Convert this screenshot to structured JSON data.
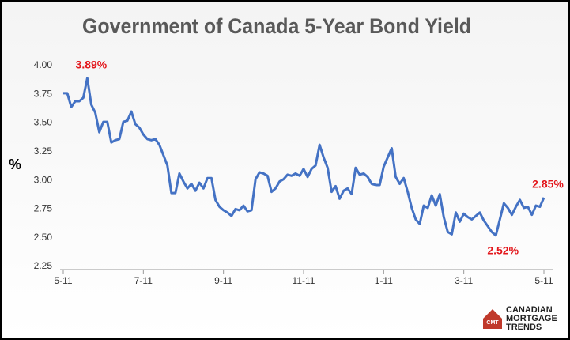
{
  "chart_data": {
    "type": "line",
    "title": "Government of Canada 5-Year Bond Yield",
    "y_label": "%",
    "x": [
      0,
      0.1,
      0.2,
      0.3,
      0.4,
      0.5,
      0.6,
      0.7,
      0.8,
      0.9,
      1,
      1.1,
      1.2,
      1.3,
      1.4,
      1.5,
      1.6,
      1.7,
      1.8,
      1.9,
      2,
      2.1,
      2.2,
      2.3,
      2.4,
      2.5,
      2.6,
      2.7,
      2.8,
      2.9,
      3,
      3.1,
      3.2,
      3.3,
      3.4,
      3.5,
      3.6,
      3.7,
      3.8,
      3.9,
      4,
      4.1,
      4.2,
      4.3,
      4.4,
      4.5,
      4.6,
      4.7,
      4.8,
      4.9,
      5,
      5.1,
      5.2,
      5.3,
      5.4,
      5.5,
      5.6,
      5.7,
      5.8,
      5.9,
      6,
      6.1,
      6.2,
      6.3,
      6.4,
      6.5,
      6.6,
      6.7,
      6.8,
      6.9,
      7,
      7.1,
      7.2,
      7.3,
      7.4,
      7.5,
      7.6,
      7.7,
      7.8,
      7.9,
      8,
      8.1,
      8.2,
      8.3,
      8.4,
      8.5,
      8.6,
      8.7,
      8.8,
      8.9,
      9,
      9.1,
      9.2,
      9.3,
      9.4,
      9.5,
      9.6,
      9.7,
      9.8,
      9.9,
      10,
      10.1,
      10.2,
      10.3,
      10.4,
      10.5,
      10.6,
      10.7,
      10.8,
      10.9,
      11,
      11.1,
      11.2,
      11.3,
      11.4,
      11.5,
      11.6,
      11.7,
      11.8,
      11.9,
      12
    ],
    "series": [
      {
        "color": "#4472c4",
        "values": [
          3.76,
          3.76,
          3.64,
          3.69,
          3.69,
          3.72,
          3.89,
          3.66,
          3.59,
          3.42,
          3.51,
          3.51,
          3.33,
          3.35,
          3.36,
          3.51,
          3.52,
          3.6,
          3.49,
          3.46,
          3.4,
          3.36,
          3.35,
          3.36,
          3.31,
          3.22,
          3.13,
          2.89,
          2.89,
          3.06,
          2.99,
          2.93,
          2.97,
          2.91,
          2.98,
          2.93,
          3.02,
          3.02,
          2.83,
          2.77,
          2.74,
          2.72,
          2.69,
          2.75,
          2.74,
          2.78,
          2.73,
          2.74,
          3.01,
          3.07,
          3.06,
          3.04,
          2.9,
          2.93,
          2.99,
          3.01,
          3.05,
          3.04,
          3.06,
          3.04,
          3.1,
          3.03,
          3.1,
          3.13,
          3.31,
          3.2,
          3.11,
          2.9,
          2.95,
          2.84,
          2.91,
          2.93,
          2.88,
          3.11,
          3.05,
          3.06,
          3.03,
          2.97,
          2.96,
          2.96,
          3.12,
          3.2,
          3.28,
          3.03,
          2.97,
          3.02,
          2.9,
          2.76,
          2.66,
          2.62,
          2.78,
          2.76,
          2.87,
          2.78,
          2.88,
          2.68,
          2.55,
          2.53,
          2.72,
          2.64,
          2.71,
          2.68,
          2.66,
          2.69,
          2.72,
          2.65,
          2.6,
          2.55,
          2.52,
          2.66,
          2.8,
          2.76,
          2.7,
          2.77,
          2.83,
          2.76,
          2.77,
          2.7,
          2.78,
          2.77,
          2.85
        ],
        "value_labels": [
          null,
          null,
          null,
          null,
          null,
          null,
          "3.89%",
          null,
          null,
          null,
          null,
          null,
          null,
          null,
          null,
          null,
          null,
          null,
          null,
          null,
          null,
          null,
          null,
          null,
          null,
          null,
          null,
          null,
          null,
          null,
          null,
          null,
          null,
          null,
          null,
          null,
          null,
          null,
          null,
          null,
          null,
          null,
          null,
          null,
          null,
          null,
          null,
          null,
          null,
          null,
          null,
          null,
          null,
          null,
          null,
          null,
          null,
          null,
          null,
          null,
          null,
          null,
          null,
          null,
          null,
          null,
          null,
          null,
          null,
          null,
          null,
          null,
          null,
          null,
          null,
          null,
          null,
          null,
          null,
          null,
          null,
          null,
          null,
          null,
          null,
          null,
          null,
          null,
          null,
          null,
          null,
          null,
          null,
          null,
          null,
          null,
          null,
          null,
          null,
          null,
          null,
          null,
          null,
          null,
          null,
          null,
          null,
          null,
          "2.52%",
          null,
          null,
          null,
          null,
          null,
          null,
          null,
          null,
          null,
          null,
          null,
          "2.85%"
        ]
      }
    ],
    "xlim": [
      0,
      12
    ],
    "xticks": [
      {
        "value": 0,
        "label": "5-11"
      },
      {
        "value": 2,
        "label": "7-11"
      },
      {
        "value": 4,
        "label": "9-11"
      },
      {
        "value": 6,
        "label": "11-11"
      },
      {
        "value": 8,
        "label": "1-11"
      },
      {
        "value": 10,
        "label": "3-11"
      },
      {
        "value": 12,
        "label": "5-11"
      }
    ],
    "ylim": [
      2.25,
      4
    ],
    "yticks": [
      2.25,
      {
        "value": 2.5,
        "label": "2.50"
      },
      2.75,
      {
        "value": 3,
        "label": "3.00"
      },
      3.25,
      {
        "value": 3.5,
        "label": "3.50"
      },
      3.75,
      {
        "value": 4,
        "label": "4.00"
      }
    ],
    "grid": false
  },
  "logo": {
    "icon": "CMT",
    "lines": [
      "CANADIAN",
      "MORTGAGE",
      "TRENDS"
    ]
  }
}
